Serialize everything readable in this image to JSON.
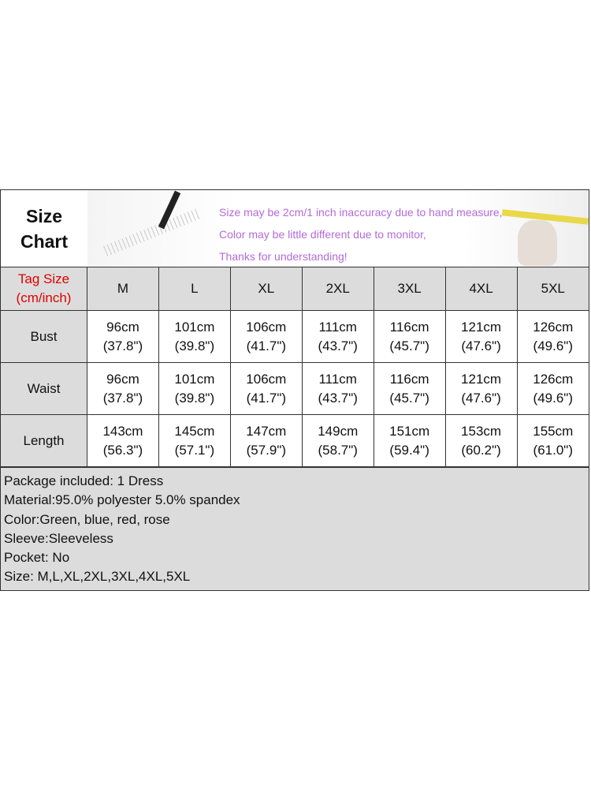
{
  "banner": {
    "title_line1": "Size",
    "title_line2": "Chart",
    "notes": [
      "Size may be 2cm/1 inch inaccuracy due to hand measure,",
      "Color may be little different due to monitor,",
      "Thanks for understanding!"
    ]
  },
  "table": {
    "tag_label_line1": "Tag Size",
    "tag_label_line2": "(cm/inch)",
    "sizes": [
      "M",
      "L",
      "XL",
      "2XL",
      "3XL",
      "4XL",
      "5XL"
    ],
    "rows": [
      {
        "label": "Bust",
        "cm": [
          "96cm",
          "101cm",
          "106cm",
          "111cm",
          "116cm",
          "121cm",
          "126cm"
        ],
        "inch": [
          "(37.8\")",
          "(39.8\")",
          "(41.7\")",
          "(43.7\")",
          "(45.7\")",
          "(47.6\")",
          "(49.6\")"
        ]
      },
      {
        "label": "Waist",
        "cm": [
          "96cm",
          "101cm",
          "106cm",
          "111cm",
          "116cm",
          "121cm",
          "126cm"
        ],
        "inch": [
          "(37.8\")",
          "(39.8\")",
          "(41.7\")",
          "(43.7\")",
          "(45.7\")",
          "(47.6\")",
          "(49.6\")"
        ]
      },
      {
        "label": "Length",
        "cm": [
          "143cm",
          "145cm",
          "147cm",
          "149cm",
          "151cm",
          "153cm",
          "155cm"
        ],
        "inch": [
          "(56.3\")",
          "(57.1\")",
          "(57.9\")",
          "(58.7\")",
          "(59.4\")",
          "(60.2\")",
          "(61.0\")"
        ]
      }
    ]
  },
  "info": [
    "Package included: 1 Dress",
    "Material:95.0% polyester 5.0% spandex",
    "Color:Green, blue, red, rose",
    "Sleeve:Sleeveless",
    "Pocket: No",
    "Size: M,L,XL,2XL,3XL,4XL,5XL"
  ],
  "colors": {
    "tag_label": "#e00000",
    "notes": "#b36bd9",
    "header_bg": "#dcdcdc"
  }
}
